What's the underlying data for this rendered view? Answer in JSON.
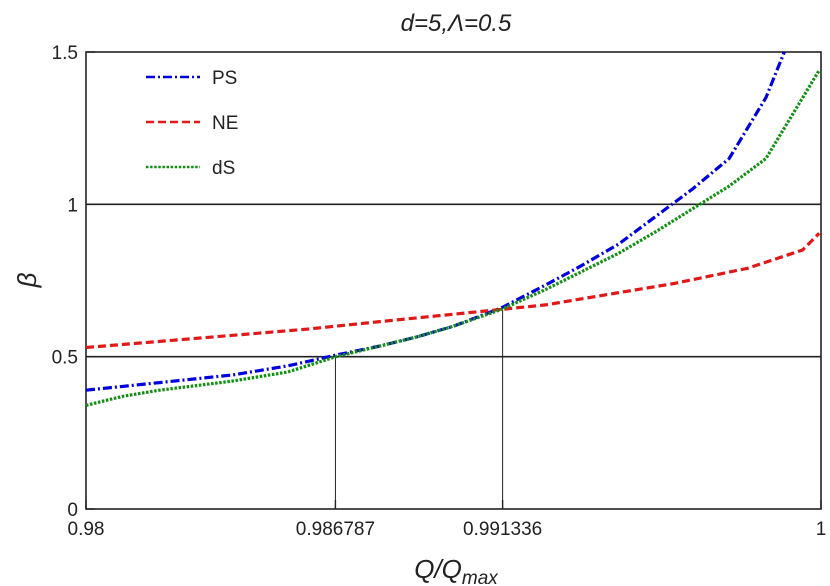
{
  "chart_data": {
    "type": "line",
    "title": "d=5,Λ=0.5",
    "xlabel": "Q/Q",
    "xlabel_sub": "max",
    "ylabel": "β",
    "xlim": [
      0.98,
      1.0
    ],
    "ylim": [
      0,
      1.5
    ],
    "x_ticks": [
      0.98,
      0.986787,
      0.991336,
      1.0
    ],
    "x_tick_labels": [
      "0.98",
      "0.986787",
      "0.991336",
      "1"
    ],
    "y_ticks": [
      0,
      0.5,
      1,
      1.5
    ],
    "y_tick_labels": [
      "0",
      "0.5",
      "1",
      "1.5"
    ],
    "reference_hlines": [
      0.5,
      1.0
    ],
    "reference_vlines": [
      {
        "x": 0.986787,
        "y": 0.5
      },
      {
        "x": 0.991336,
        "y": 0.655
      }
    ],
    "legend_position": "top-left",
    "series": [
      {
        "name": "PS",
        "color": "#0000dd",
        "dash": "dashdot",
        "x": [
          0.98,
          0.982,
          0.984,
          0.9855,
          0.9868,
          0.988,
          0.989,
          0.99,
          0.9913,
          0.9925,
          0.9935,
          0.9945,
          0.9955,
          0.9965,
          0.9975,
          0.9985,
          0.999
        ],
        "y": [
          0.39,
          0.415,
          0.44,
          0.47,
          0.505,
          0.535,
          0.565,
          0.6,
          0.66,
          0.735,
          0.8,
          0.87,
          0.96,
          1.05,
          1.15,
          1.35,
          1.5
        ]
      },
      {
        "name": "NE",
        "color": "#e01818",
        "dash": "dashed",
        "x": [
          0.98,
          0.982,
          0.984,
          0.986,
          0.988,
          0.9913,
          0.9925,
          0.994,
          0.996,
          0.998,
          0.9995,
          0.99995
        ],
        "y": [
          0.53,
          0.55,
          0.57,
          0.59,
          0.615,
          0.655,
          0.67,
          0.7,
          0.74,
          0.79,
          0.85,
          0.905
        ]
      },
      {
        "name": "dS",
        "color": "#109010",
        "dash": "dotted",
        "x": [
          0.98,
          0.9805,
          0.981,
          0.982,
          0.983,
          0.984,
          0.9855,
          0.9868,
          0.988,
          0.989,
          0.99,
          0.9913,
          0.9925,
          0.9935,
          0.9945,
          0.9955,
          0.9965,
          0.9975,
          0.9985,
          0.99995
        ],
        "y": [
          0.34,
          0.355,
          0.37,
          0.39,
          0.405,
          0.42,
          0.45,
          0.5,
          0.535,
          0.565,
          0.6,
          0.655,
          0.72,
          0.78,
          0.84,
          0.91,
          0.985,
          1.06,
          1.15,
          1.44
        ]
      }
    ]
  }
}
